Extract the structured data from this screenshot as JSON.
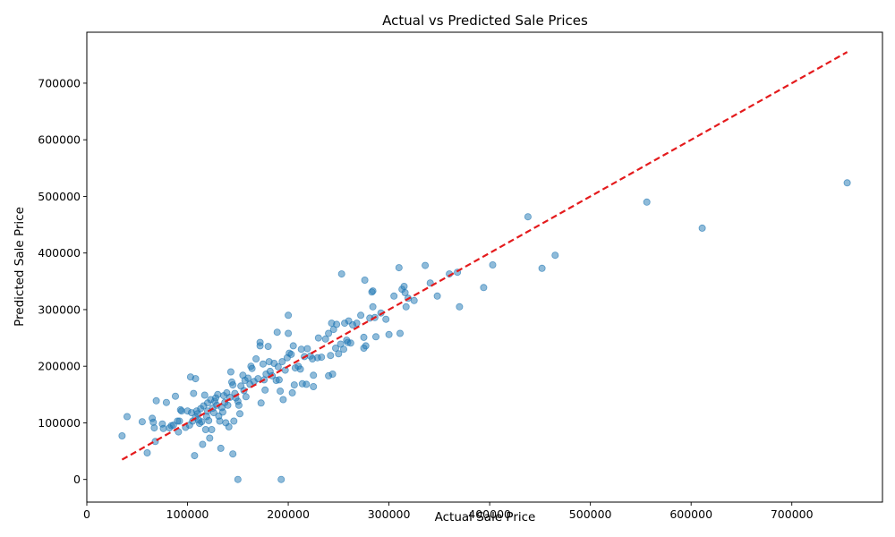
{
  "chart_data": {
    "type": "scatter",
    "title": "Actual vs Predicted Sale Prices",
    "xlabel": "Actual Sale Price",
    "ylabel": "Predicted Sale Price",
    "xlim": [
      0,
      790000
    ],
    "ylim": [
      -40000,
      790000
    ],
    "xticks": [
      0,
      100000,
      200000,
      300000,
      400000,
      500000,
      600000,
      700000
    ],
    "yticks": [
      0,
      100000,
      200000,
      300000,
      400000,
      500000,
      600000,
      700000
    ],
    "xtick_labels": [
      "0",
      "100000",
      "200000",
      "300000",
      "400000",
      "500000",
      "600000",
      "700000"
    ],
    "ytick_labels": [
      "0",
      "100000",
      "200000",
      "300000",
      "400000",
      "500000",
      "600000",
      "700000"
    ],
    "grid": false,
    "point_color": "#1f77b4",
    "reference_line": {
      "from": [
        35000,
        35000
      ],
      "to": [
        755000,
        755000
      ],
      "color": "#e41a1c",
      "style": "dashed"
    },
    "points": [
      [
        35000,
        77000
      ],
      [
        40000,
        111000
      ],
      [
        55000,
        102000
      ],
      [
        60000,
        47000
      ],
      [
        65000,
        108000
      ],
      [
        66000,
        101000
      ],
      [
        67000,
        91000
      ],
      [
        68000,
        67000
      ],
      [
        69000,
        139000
      ],
      [
        75000,
        98000
      ],
      [
        76000,
        90000
      ],
      [
        79000,
        136000
      ],
      [
        82000,
        91000
      ],
      [
        84000,
        95000
      ],
      [
        86000,
        96000
      ],
      [
        88000,
        147000
      ],
      [
        90000,
        103000
      ],
      [
        91000,
        84000
      ],
      [
        92000,
        103000
      ],
      [
        93000,
        123000
      ],
      [
        94000,
        121000
      ],
      [
        98000,
        92000
      ],
      [
        100000,
        121000
      ],
      [
        102000,
        96000
      ],
      [
        103000,
        181000
      ],
      [
        104000,
        118000
      ],
      [
        105000,
        103000
      ],
      [
        106000,
        152000
      ],
      [
        107000,
        42000
      ],
      [
        108000,
        178000
      ],
      [
        108000,
        110000
      ],
      [
        109000,
        121000
      ],
      [
        110000,
        116000
      ],
      [
        111000,
        105000
      ],
      [
        112000,
        99000
      ],
      [
        113000,
        125000
      ],
      [
        114000,
        102000
      ],
      [
        115000,
        62000
      ],
      [
        116000,
        130000
      ],
      [
        117000,
        149000
      ],
      [
        118000,
        88000
      ],
      [
        119000,
        111000
      ],
      [
        120000,
        121000
      ],
      [
        120000,
        135000
      ],
      [
        121000,
        104000
      ],
      [
        122000,
        73000
      ],
      [
        123000,
        141000
      ],
      [
        124000,
        88000
      ],
      [
        125000,
        126000
      ],
      [
        126000,
        118000
      ],
      [
        127000,
        138000
      ],
      [
        128000,
        144000
      ],
      [
        129000,
        131000
      ],
      [
        130000,
        150000
      ],
      [
        131000,
        112000
      ],
      [
        132000,
        103000
      ],
      [
        133000,
        55000
      ],
      [
        134000,
        127000
      ],
      [
        135000,
        119000
      ],
      [
        136000,
        148000
      ],
      [
        137000,
        136000
      ],
      [
        138000,
        100000
      ],
      [
        139000,
        153000
      ],
      [
        140000,
        131000
      ],
      [
        141000,
        93000
      ],
      [
        142000,
        145000
      ],
      [
        143000,
        190000
      ],
      [
        144000,
        172000
      ],
      [
        145000,
        45000
      ],
      [
        145000,
        167000
      ],
      [
        146000,
        103000
      ],
      [
        147000,
        152000
      ],
      [
        148000,
        144000
      ],
      [
        150000,
        0
      ],
      [
        150000,
        138000
      ],
      [
        151000,
        131000
      ],
      [
        152000,
        116000
      ],
      [
        153000,
        165000
      ],
      [
        155000,
        184000
      ],
      [
        156000,
        157000
      ],
      [
        157000,
        175000
      ],
      [
        158000,
        146000
      ],
      [
        160000,
        179000
      ],
      [
        162000,
        168000
      ],
      [
        163000,
        200000
      ],
      [
        164000,
        196000
      ],
      [
        166000,
        173000
      ],
      [
        168000,
        213000
      ],
      [
        170000,
        178000
      ],
      [
        172000,
        236000
      ],
      [
        172000,
        242000
      ],
      [
        173000,
        135000
      ],
      [
        175000,
        204000
      ],
      [
        176000,
        176000
      ],
      [
        177000,
        158000
      ],
      [
        178000,
        186000
      ],
      [
        180000,
        235000
      ],
      [
        181000,
        208000
      ],
      [
        182000,
        191000
      ],
      [
        184000,
        183000
      ],
      [
        186000,
        205000
      ],
      [
        188000,
        175000
      ],
      [
        189000,
        260000
      ],
      [
        190000,
        199000
      ],
      [
        191000,
        176000
      ],
      [
        192000,
        156000
      ],
      [
        193000,
        0
      ],
      [
        194000,
        208000
      ],
      [
        195000,
        141000
      ],
      [
        197000,
        193000
      ],
      [
        199000,
        215000
      ],
      [
        200000,
        258000
      ],
      [
        200000,
        290000
      ],
      [
        201000,
        223000
      ],
      [
        203000,
        221000
      ],
      [
        204000,
        153000
      ],
      [
        205000,
        236000
      ],
      [
        206000,
        167000
      ],
      [
        207000,
        197000
      ],
      [
        210000,
        200000
      ],
      [
        212000,
        195000
      ],
      [
        213000,
        230000
      ],
      [
        214000,
        169000
      ],
      [
        216000,
        217000
      ],
      [
        218000,
        168000
      ],
      [
        219000,
        231000
      ],
      [
        222000,
        218000
      ],
      [
        224000,
        213000
      ],
      [
        225000,
        184000
      ],
      [
        225000,
        164000
      ],
      [
        229000,
        215000
      ],
      [
        230000,
        250000
      ],
      [
        233000,
        216000
      ],
      [
        237000,
        248000
      ],
      [
        240000,
        258000
      ],
      [
        240000,
        183000
      ],
      [
        242000,
        219000
      ],
      [
        243000,
        276000
      ],
      [
        244000,
        186000
      ],
      [
        245000,
        265000
      ],
      [
        247000,
        232000
      ],
      [
        248000,
        274000
      ],
      [
        250000,
        222000
      ],
      [
        252000,
        239000
      ],
      [
        253000,
        363000
      ],
      [
        255000,
        230000
      ],
      [
        256000,
        276000
      ],
      [
        258000,
        246000
      ],
      [
        259000,
        242000
      ],
      [
        260000,
        280000
      ],
      [
        262000,
        241000
      ],
      [
        264000,
        273000
      ],
      [
        268000,
        276000
      ],
      [
        272000,
        290000
      ],
      [
        275000,
        232000
      ],
      [
        275000,
        251000
      ],
      [
        276000,
        352000
      ],
      [
        277000,
        236000
      ],
      [
        281000,
        285000
      ],
      [
        283000,
        331000
      ],
      [
        284000,
        305000
      ],
      [
        284000,
        333000
      ],
      [
        286000,
        286000
      ],
      [
        287000,
        252000
      ],
      [
        292000,
        294000
      ],
      [
        297000,
        283000
      ],
      [
        300000,
        256000
      ],
      [
        305000,
        324000
      ],
      [
        310000,
        374000
      ],
      [
        311000,
        258000
      ],
      [
        313000,
        336000
      ],
      [
        315000,
        341000
      ],
      [
        316000,
        330000
      ],
      [
        317000,
        305000
      ],
      [
        319000,
        320000
      ],
      [
        325000,
        316000
      ],
      [
        336000,
        378000
      ],
      [
        341000,
        347000
      ],
      [
        348000,
        324000
      ],
      [
        360000,
        363000
      ],
      [
        368000,
        366000
      ],
      [
        370000,
        305000
      ],
      [
        394000,
        339000
      ],
      [
        403000,
        379000
      ],
      [
        438000,
        464000
      ],
      [
        452000,
        373000
      ],
      [
        465000,
        396000
      ],
      [
        556000,
        490000
      ],
      [
        611000,
        444000
      ],
      [
        755000,
        524000
      ]
    ]
  }
}
